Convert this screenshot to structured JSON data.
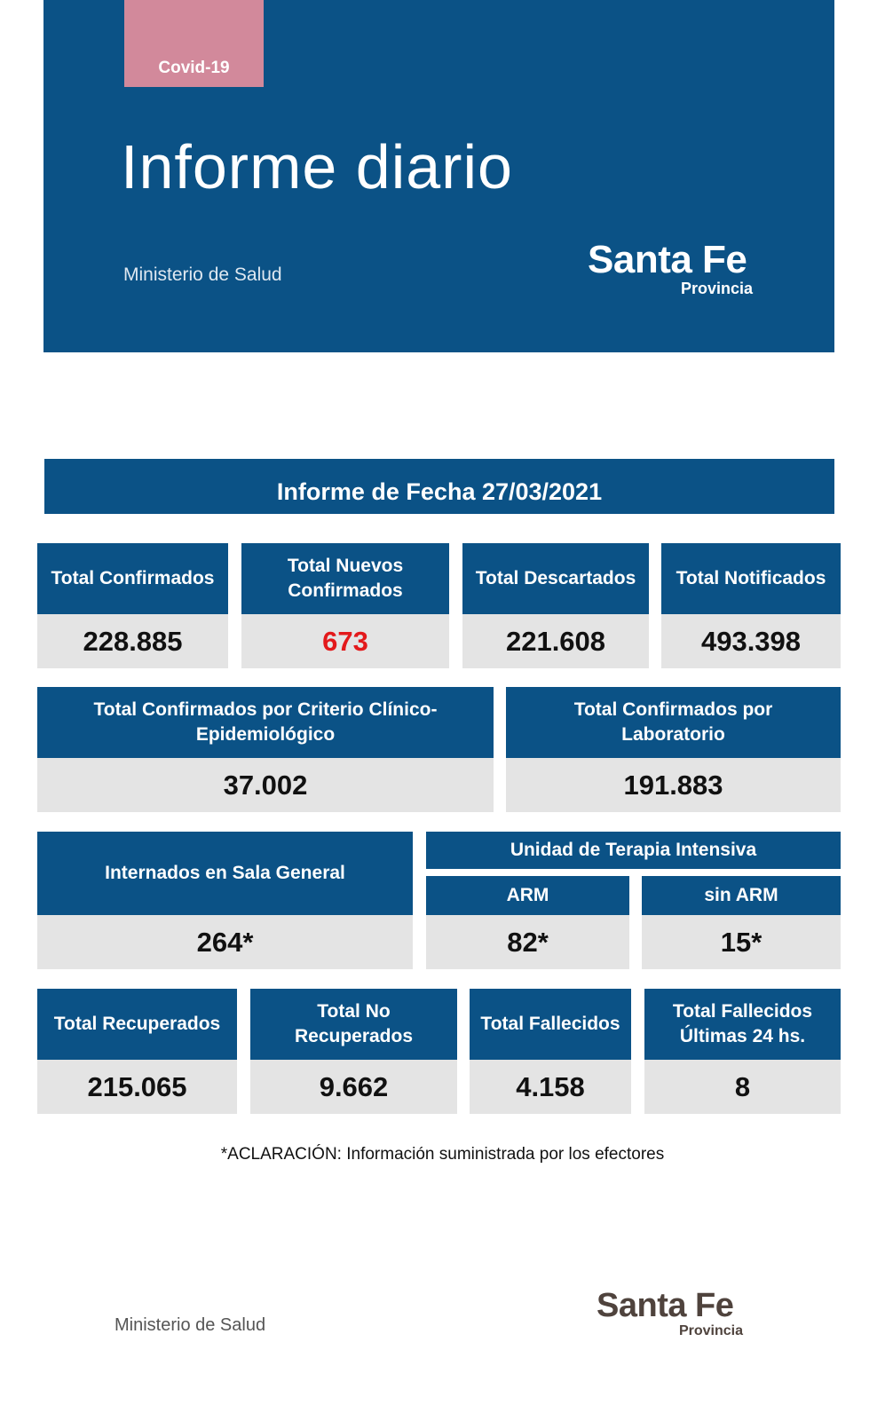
{
  "header": {
    "tag": "Covid-19",
    "title": "Informe diario",
    "ministry": "Ministerio de Salud",
    "logo_main": "Santa Fe",
    "logo_sub": "Provincia"
  },
  "report_date_title": "Informe de Fecha 27/03/2021",
  "row1": [
    {
      "label": "Total Confirmados",
      "value": "228.885"
    },
    {
      "label": "Total Nuevos Confirmados",
      "value": "673"
    },
    {
      "label": "Total Descartados",
      "value": "221.608"
    },
    {
      "label": "Total Notificados",
      "value": "493.398"
    }
  ],
  "row2": [
    {
      "label": "Total Confirmados por Criterio Clínico-Epidemiológico",
      "value": "37.002"
    },
    {
      "label": "Total Confirmados por Laboratorio",
      "value": "191.883"
    }
  ],
  "row3": {
    "sala_general": {
      "label": "Internados en Sala General",
      "value": "264*"
    },
    "uti_title": "Unidad de Terapia Intensiva",
    "arm": {
      "label": "ARM",
      "value": "82*"
    },
    "sin_arm": {
      "label": "sin ARM",
      "value": "15*"
    }
  },
  "row4": [
    {
      "label": "Total Recuperados",
      "value": "215.065"
    },
    {
      "label": "Total No Recuperados",
      "value": "9.662"
    },
    {
      "label": "Total Fallecidos",
      "value": "4.158"
    },
    {
      "label": "Total Fallecidos Últimas 24 hs.",
      "value": "8"
    }
  ],
  "note": "*ACLARACIÓN: Información suministrada por los efectores",
  "footer": {
    "ministry": "Ministerio de Salud",
    "logo_main": "Santa Fe",
    "logo_sub": "Provincia"
  },
  "colors": {
    "header_blue": "#0b5286",
    "tag_pink": "#d2899b",
    "value_grey": "#e4e4e4",
    "highlight_red": "#e3191b"
  }
}
